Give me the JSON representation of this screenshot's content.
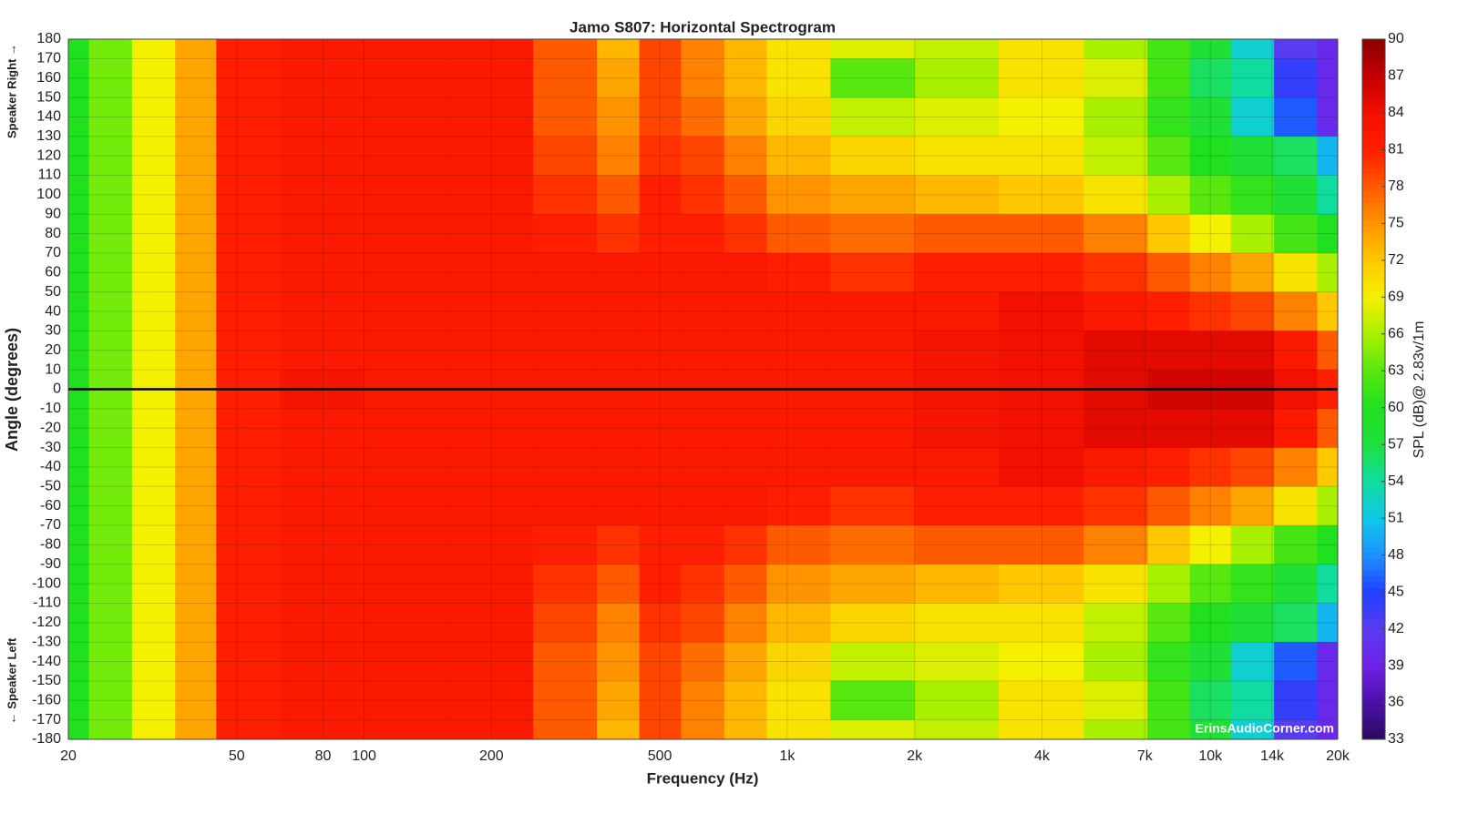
{
  "chart_data": {
    "type": "heatmap",
    "title": "Jamo S807: Horizontal Spectrogram",
    "x_label": "Frequency (Hz)",
    "y_label": "Angle (degrees)",
    "y_top_note": "Speaker Right →",
    "y_bottom_note": "← Speaker Left",
    "colorbar_label": "SPL (dB)@ 2.83v/1m",
    "watermark": "ErinsAudioCorner.com",
    "x_scale": "log",
    "grid": true,
    "hline": 0,
    "hline_color": "#000000",
    "x": [
      20,
      25,
      32,
      40,
      50,
      80,
      125,
      200,
      315,
      400,
      500,
      630,
      800,
      1000,
      1600,
      2500,
      4000,
      6300,
      8000,
      10000,
      12500,
      16000,
      20000
    ],
    "y": [
      180,
      160,
      140,
      120,
      100,
      80,
      60,
      40,
      20,
      0,
      -20,
      -40,
      -60,
      -80,
      -100,
      -120,
      -140,
      -160,
      -180
    ],
    "z": [
      [
        60,
        64,
        69,
        74,
        81,
        82,
        82,
        82,
        78,
        73,
        79,
        76,
        73,
        70,
        68,
        67,
        70,
        66,
        62,
        58,
        52,
        42,
        40
      ],
      [
        60,
        64,
        69,
        74,
        81,
        82,
        82,
        82,
        78,
        74,
        79,
        76,
        73,
        70,
        63,
        66,
        70,
        68,
        62,
        56,
        54,
        44,
        40
      ],
      [
        60,
        64,
        69,
        74,
        81,
        82,
        82,
        82,
        78,
        75,
        79,
        77,
        74,
        71,
        67,
        68,
        69,
        66,
        61,
        58,
        52,
        46,
        40
      ],
      [
        60,
        64,
        69,
        74,
        81,
        82,
        82,
        82,
        79,
        76,
        80,
        79,
        76,
        73,
        71,
        70,
        70,
        67,
        63,
        60,
        58,
        56,
        50
      ],
      [
        60,
        64,
        69,
        74,
        81,
        82,
        82,
        82,
        80,
        78,
        81,
        80,
        78,
        75,
        74,
        73,
        72,
        70,
        66,
        63,
        61,
        58,
        54
      ],
      [
        60,
        64,
        69,
        74,
        81,
        82,
        82,
        82,
        81,
        80,
        81,
        81,
        80,
        78,
        77,
        78,
        78,
        76,
        72,
        69,
        66,
        62,
        60
      ],
      [
        60,
        64,
        69,
        74,
        81,
        82,
        82,
        82,
        82,
        82,
        82,
        82,
        82,
        81,
        80,
        81,
        81,
        80,
        78,
        76,
        74,
        70,
        66
      ],
      [
        60,
        64,
        69,
        74,
        81,
        82,
        82,
        82,
        82,
        82,
        82,
        82,
        82,
        82,
        82,
        82,
        84,
        82,
        81,
        80,
        79,
        76,
        72
      ],
      [
        60,
        64,
        69,
        74,
        81,
        82,
        82,
        82,
        82,
        82,
        82,
        82,
        82,
        82,
        82,
        83,
        84,
        85,
        85,
        85,
        85,
        82,
        78
      ],
      [
        60,
        64,
        69,
        74,
        81,
        83,
        82,
        82,
        82,
        82,
        82,
        82,
        82,
        82,
        82,
        83,
        84,
        85,
        86,
        86,
        86,
        84,
        81
      ],
      [
        60,
        64,
        69,
        74,
        81,
        82,
        82,
        82,
        82,
        82,
        82,
        82,
        82,
        82,
        82,
        83,
        84,
        85,
        85,
        85,
        85,
        82,
        78
      ],
      [
        60,
        64,
        69,
        74,
        81,
        82,
        82,
        82,
        82,
        82,
        82,
        82,
        82,
        82,
        82,
        82,
        84,
        82,
        81,
        80,
        79,
        76,
        72
      ],
      [
        60,
        64,
        69,
        74,
        81,
        82,
        82,
        82,
        82,
        82,
        82,
        82,
        82,
        81,
        80,
        81,
        81,
        80,
        78,
        76,
        74,
        70,
        66
      ],
      [
        60,
        64,
        69,
        74,
        81,
        82,
        82,
        82,
        81,
        80,
        81,
        81,
        80,
        78,
        77,
        78,
        78,
        76,
        72,
        69,
        66,
        62,
        60
      ],
      [
        60,
        64,
        69,
        74,
        81,
        82,
        82,
        82,
        80,
        78,
        81,
        80,
        78,
        75,
        74,
        73,
        72,
        70,
        66,
        63,
        61,
        58,
        54
      ],
      [
        60,
        64,
        69,
        74,
        81,
        82,
        82,
        82,
        79,
        76,
        80,
        79,
        76,
        73,
        71,
        70,
        70,
        67,
        63,
        60,
        58,
        56,
        50
      ],
      [
        60,
        64,
        69,
        74,
        81,
        82,
        82,
        82,
        78,
        75,
        79,
        77,
        74,
        71,
        67,
        68,
        69,
        66,
        61,
        58,
        52,
        46,
        40
      ],
      [
        60,
        64,
        69,
        74,
        81,
        82,
        82,
        82,
        78,
        74,
        79,
        76,
        73,
        70,
        63,
        66,
        70,
        68,
        62,
        56,
        54,
        44,
        40
      ],
      [
        60,
        64,
        69,
        74,
        81,
        82,
        82,
        82,
        78,
        73,
        79,
        76,
        73,
        70,
        68,
        67,
        70,
        66,
        62,
        58,
        52,
        42,
        40
      ]
    ],
    "xlim": [
      20,
      20000
    ],
    "ylim": [
      -180,
      180
    ],
    "zlim": [
      33,
      90
    ],
    "xticks": [
      20,
      50,
      80,
      100,
      200,
      500,
      {
        "value": 1000,
        "label": "1k"
      },
      {
        "value": 2000,
        "label": "2k"
      },
      {
        "value": 4000,
        "label": "4k"
      },
      {
        "value": 7000,
        "label": "7k"
      },
      {
        "value": 10000,
        "label": "10k"
      },
      {
        "value": 14000,
        "label": "14k"
      },
      {
        "value": 20000,
        "label": "20k"
      }
    ],
    "yticks": [
      180,
      170,
      160,
      150,
      140,
      130,
      120,
      110,
      100,
      90,
      80,
      70,
      60,
      50,
      40,
      30,
      20,
      10,
      0,
      -10,
      -20,
      -30,
      -40,
      -50,
      -60,
      -70,
      -80,
      -90,
      -100,
      -110,
      -120,
      -130,
      -140,
      -150,
      -160,
      -170,
      -180
    ],
    "cticks": [
      90,
      87,
      84,
      81,
      78,
      75,
      72,
      69,
      66,
      63,
      60,
      57,
      54,
      51,
      48,
      45,
      42,
      39,
      36,
      33
    ],
    "colorscale": [
      "#2a0a5e",
      "#4b10a8",
      "#7020e8",
      "#5a3cf0",
      "#2040ff",
      "#1e90ff",
      "#10c8e8",
      "#10dca0",
      "#20e040",
      "#20e020",
      "#58e810",
      "#a8f000",
      "#f4f000",
      "#ffc800",
      "#ff9400",
      "#ff5a00",
      "#ff1e00",
      "#f21000",
      "#c40000",
      "#8c0000"
    ]
  }
}
